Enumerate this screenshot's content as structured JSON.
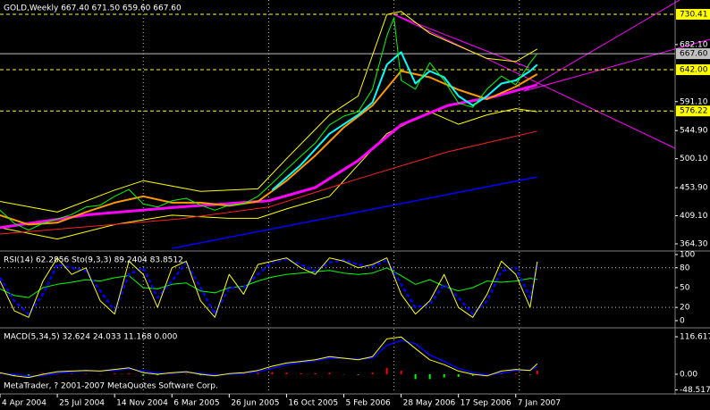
{
  "chart_data": [
    {
      "type": "line",
      "title": "GOLD,Weekly  667.40 671.50 659.60 667.60",
      "xlim": [
        0,
        188.5
      ],
      "ylim": [
        354.3,
        753.2
      ],
      "yticks": [
        {
          "value": 682.1,
          "label": "682.10"
        },
        {
          "value": 591.1,
          "label": "591.10"
        },
        {
          "value": 544.9,
          "label": "544.90"
        },
        {
          "value": 500.1,
          "label": "500.10"
        },
        {
          "value": 453.9,
          "label": "453.90"
        },
        {
          "value": 409.1,
          "label": "409.10"
        },
        {
          "value": 364.3,
          "label": "364.30"
        }
      ],
      "xgrid": [
        40,
        75,
        110,
        145
      ],
      "levels": [
        {
          "value": 730.41,
          "label": "730.41",
          "color": "#ffff00",
          "style": "dashed"
        },
        {
          "value": 667.6,
          "label": "667.60",
          "color": "#c0c0c0",
          "style": "solid"
        },
        {
          "value": 642,
          "label": "642.00",
          "color": "#ffff00",
          "style": "dashed"
        },
        {
          "value": 576.22,
          "label": "576.22",
          "color": "#ffff00",
          "style": "dashed"
        }
      ],
      "series": [
        {
          "color": "#ffff00",
          "width": 1,
          "x": [
            0,
            16,
            32,
            40,
            56,
            72,
            80,
            92,
            100,
            108,
            112,
            120,
            128,
            136,
            144,
            150
          ],
          "values": [
            432,
            415,
            450,
            465,
            448,
            452,
            500,
            570,
            600,
            730,
            735,
            700,
            680,
            660,
            655,
            675
          ]
        },
        {
          "color": "#ffff00",
          "width": 1,
          "x": [
            0,
            16,
            32,
            48,
            64,
            72,
            80,
            92,
            100,
            108,
            120,
            128,
            136,
            144,
            150
          ],
          "values": [
            390,
            372,
            395,
            410,
            405,
            405,
            420,
            440,
            490,
            540,
            575,
            555,
            570,
            580,
            575
          ]
        },
        {
          "color": "#0000ff",
          "width": 1.5,
          "x": [
            48,
            100,
            150
          ],
          "values": [
            357,
            415,
            471
          ]
        },
        {
          "color": "#ff2020",
          "width": 1,
          "x": [
            0,
            50,
            75,
            100,
            125,
            150
          ],
          "values": [
            380,
            404,
            423,
            468,
            511,
            544
          ]
        },
        {
          "color": "#ff00ff",
          "width": 3,
          "x": [
            0,
            25,
            50,
            75,
            88,
            100,
            112,
            125,
            138,
            150
          ],
          "values": [
            390,
            411,
            423,
            433,
            454,
            497,
            554,
            585,
            599,
            618
          ]
        },
        {
          "color": "#ff9900",
          "width": 2,
          "x": [
            0,
            8,
            16,
            24,
            32,
            40,
            48,
            56,
            64,
            72,
            80,
            88,
            96,
            104,
            112,
            120,
            128,
            136,
            144,
            150
          ],
          "values": [
            410,
            395,
            398,
            415,
            430,
            440,
            430,
            430,
            425,
            432,
            465,
            505,
            550,
            585,
            640,
            630,
            610,
            595,
            615,
            635
          ]
        },
        {
          "color": "#00ffff",
          "width": 2,
          "x": [
            76,
            84,
            92,
            100,
            104,
            108,
            112,
            116,
            120,
            124,
            128,
            132,
            136,
            140,
            144,
            148,
            150
          ],
          "values": [
            450,
            490,
            540,
            570,
            590,
            650,
            670,
            620,
            640,
            630,
            600,
            585,
            600,
            620,
            625,
            640,
            650
          ]
        },
        {
          "color": "#00ff00",
          "width": 1,
          "x": [
            0,
            4,
            8,
            12,
            16,
            20,
            24,
            28,
            32,
            36,
            40,
            44,
            48,
            52,
            56,
            60,
            64,
            68,
            72,
            76,
            80,
            84,
            88,
            92,
            96,
            100,
            104,
            108,
            110,
            112,
            116,
            120,
            124,
            128,
            132,
            136,
            140,
            144,
            148,
            150
          ],
          "values": [
            418,
            397,
            386,
            397,
            404,
            411,
            423,
            426,
            440,
            451,
            428,
            423,
            433,
            437,
            426,
            418,
            426,
            428,
            440,
            461,
            483,
            504,
            525,
            554,
            568,
            575,
            611,
            696,
            725,
            625,
            611,
            653,
            625,
            589,
            582,
            611,
            632,
            618,
            653,
            667.6
          ]
        }
      ]
    },
    {
      "type": "line",
      "title": "RSI(14) 62.2856  Sto(9,3,3) 89.2404 83.8512",
      "xlim": [
        0,
        188.5
      ],
      "ylim": [
        -9.5,
        104
      ],
      "yticks": [
        100,
        80,
        50,
        20,
        0
      ],
      "xgrid": [
        40,
        75,
        110,
        145
      ],
      "levels": [
        80,
        20
      ],
      "series": [
        {
          "color": "#00ff00",
          "width": 1,
          "x": [
            0,
            4,
            8,
            12,
            16,
            20,
            24,
            28,
            32,
            36,
            40,
            44,
            48,
            52,
            56,
            60,
            64,
            68,
            72,
            76,
            80,
            84,
            88,
            92,
            96,
            100,
            104,
            108,
            112,
            116,
            120,
            124,
            128,
            132,
            136,
            140,
            144,
            148,
            150
          ],
          "values": [
            48,
            38,
            35,
            50,
            55,
            58,
            62,
            60,
            65,
            68,
            50,
            48,
            55,
            57,
            45,
            42,
            50,
            52,
            60,
            66,
            70,
            72,
            74,
            76,
            72,
            70,
            72,
            80,
            68,
            55,
            62,
            52,
            45,
            50,
            60,
            58,
            60,
            64,
            62.3
          ]
        },
        {
          "color": "#0000ff",
          "width": 2.5,
          "dash": "4,3",
          "x": [
            0,
            4,
            8,
            12,
            16,
            20,
            24,
            28,
            32,
            36,
            40,
            44,
            48,
            52,
            56,
            60,
            64,
            68,
            72,
            76,
            80,
            84,
            88,
            92,
            96,
            100,
            104,
            108,
            112,
            116,
            120,
            124,
            128,
            132,
            136,
            140,
            144,
            148,
            150
          ],
          "values": [
            65,
            30,
            10,
            40,
            85,
            80,
            75,
            45,
            15,
            70,
            80,
            35,
            60,
            88,
            50,
            10,
            50,
            50,
            70,
            88,
            93,
            85,
            75,
            88,
            92,
            85,
            82,
            92,
            55,
            20,
            25,
            55,
            35,
            10,
            30,
            75,
            80,
            35,
            83.9
          ]
        },
        {
          "color": "#ffff00",
          "width": 1,
          "x": [
            0,
            4,
            8,
            12,
            16,
            20,
            24,
            28,
            32,
            36,
            40,
            44,
            48,
            52,
            56,
            60,
            64,
            68,
            72,
            76,
            80,
            84,
            88,
            92,
            96,
            100,
            104,
            108,
            112,
            116,
            120,
            124,
            128,
            132,
            136,
            140,
            144,
            148,
            150
          ],
          "values": [
            60,
            15,
            5,
            60,
            95,
            70,
            80,
            30,
            10,
            90,
            70,
            20,
            80,
            90,
            30,
            5,
            70,
            40,
            85,
            90,
            95,
            80,
            70,
            95,
            90,
            80,
            85,
            95,
            40,
            10,
            30,
            70,
            20,
            5,
            40,
            90,
            70,
            20,
            89.2
          ]
        }
      ]
    },
    {
      "type": "line",
      "title": "MACD(5,34,5) 32.624 24.033 11.168 0.000",
      "xlim": [
        0,
        188.5
      ],
      "ylim": [
        -58.3,
        141.6
      ],
      "yticks": [
        116.617,
        {
          "value": 0,
          "label": "0.00"
        },
        -48.517
      ],
      "xgrid": [
        40,
        75,
        110,
        145
      ],
      "xticks": [
        {
          "value": 0,
          "label": "4 Apr 2004"
        },
        {
          "value": 16,
          "label": "25 Jul 2004"
        },
        {
          "value": 32,
          "label": "14 Nov 2004"
        },
        {
          "value": 48,
          "label": "6 Mar 2005"
        },
        {
          "value": 64,
          "label": "26 Jun 2005"
        },
        {
          "value": 80,
          "label": "16 Oct 2005"
        },
        {
          "value": 96,
          "label": "5 Feb 2006"
        },
        {
          "value": 112,
          "label": "28 May 2006"
        },
        {
          "value": 128,
          "label": "17 Sep 2006"
        },
        {
          "value": 144,
          "label": "7 Jan 2007"
        }
      ],
      "series": [
        {
          "type": "bar",
          "color_up": "#ff0000",
          "color_down": "#00ff00",
          "x": [
            0,
            4,
            8,
            12,
            16,
            20,
            24,
            28,
            32,
            36,
            40,
            44,
            48,
            52,
            56,
            60,
            64,
            68,
            72,
            76,
            80,
            84,
            88,
            92,
            96,
            100,
            104,
            108,
            112,
            116,
            120,
            124,
            128,
            132,
            136,
            140,
            144,
            148,
            150
          ],
          "values": [
            2,
            -5,
            -4,
            4,
            5,
            2,
            2,
            0,
            3,
            3,
            -5,
            -3,
            2,
            2,
            -3,
            -3,
            2,
            2,
            4,
            7,
            5,
            3,
            3,
            5,
            0,
            -2,
            5,
            20,
            11,
            -15,
            -15,
            -10,
            -8,
            -5,
            -3,
            6,
            3,
            -1,
            11.2
          ]
        },
        {
          "color": "#0000ff",
          "width": 1.5,
          "x": [
            0,
            4,
            8,
            12,
            16,
            20,
            24,
            28,
            32,
            36,
            40,
            44,
            48,
            52,
            56,
            60,
            64,
            68,
            72,
            76,
            80,
            84,
            88,
            92,
            96,
            100,
            104,
            108,
            112,
            116,
            120,
            124,
            128,
            132,
            136,
            140,
            144,
            148,
            150
          ],
          "values": [
            3,
            0,
            -6,
            -4,
            3,
            8,
            10,
            10,
            12,
            17,
            10,
            3,
            3,
            6,
            3,
            -2,
            0,
            3,
            8,
            18,
            30,
            37,
            42,
            50,
            50,
            47,
            50,
            90,
            105,
            95,
            60,
            40,
            18,
            5,
            -2,
            4,
            12,
            13,
            24
          ]
        },
        {
          "color": "#ffff00",
          "width": 1,
          "x": [
            0,
            4,
            8,
            12,
            16,
            20,
            24,
            28,
            32,
            36,
            40,
            44,
            48,
            52,
            56,
            60,
            64,
            68,
            72,
            76,
            80,
            84,
            88,
            92,
            96,
            100,
            104,
            108,
            112,
            116,
            120,
            124,
            128,
            132,
            136,
            140,
            144,
            148,
            150
          ],
          "values": [
            5,
            -5,
            -10,
            0,
            8,
            10,
            12,
            10,
            15,
            20,
            5,
            0,
            5,
            8,
            0,
            -5,
            2,
            5,
            12,
            25,
            35,
            40,
            45,
            55,
            50,
            45,
            55,
            110,
            116,
            80,
            45,
            30,
            10,
            0,
            -5,
            10,
            15,
            12,
            32.6
          ]
        }
      ]
    }
  ],
  "footer": "MetaTrader, ? 2001-2007 MetaQuotes Software Corp."
}
